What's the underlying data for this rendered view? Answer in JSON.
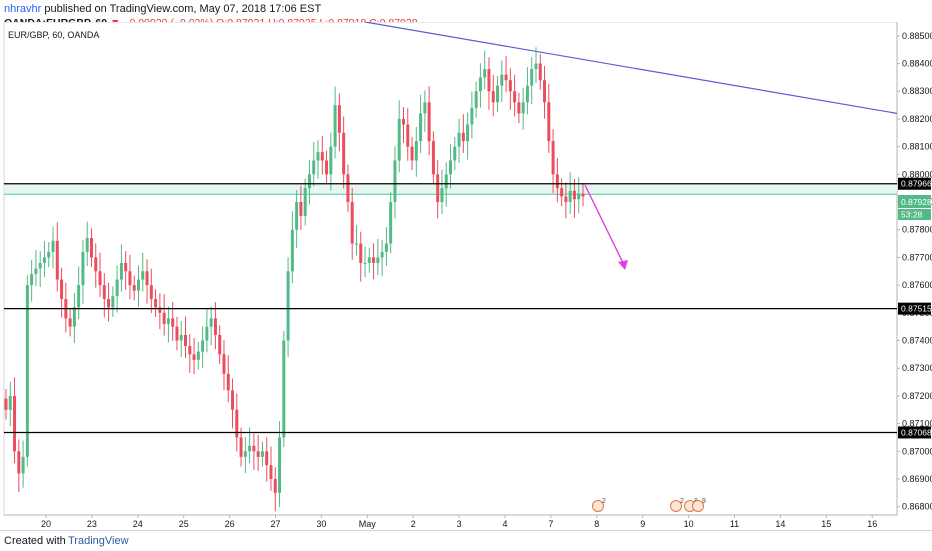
{
  "header": {
    "author": "nhravhr",
    "published": "published on TradingView.com, May 07, 2018 17:06 EST",
    "symbol": "OANDA:EURGBP, 60",
    "change": "▼ −0.00020 (−0.02%)",
    "ohlc": "O:0.87921 H:0.87935 L:0.87918 C:0.87928"
  },
  "chart_data": {
    "type": "candlestick",
    "title": "EUR/GBP, 60, OANDA",
    "y_range": [
      0.8677,
      0.8855
    ],
    "y_ticks": [
      "0.88500",
      "0.88400",
      "0.88300",
      "0.88200",
      "0.88100",
      "0.88000",
      "0.87900",
      "0.87800",
      "0.87700",
      "0.87600",
      "0.87500",
      "0.87400",
      "0.87300",
      "0.87200",
      "0.87100",
      "0.87000",
      "0.86900",
      "0.86800"
    ],
    "x_ticks": [
      "20",
      "23",
      "24",
      "25",
      "26",
      "27",
      "30",
      "May",
      "2",
      "3",
      "4",
      "7",
      "8",
      "9",
      "10",
      "11",
      "14",
      "15",
      "16"
    ],
    "horizontal_levels": [
      {
        "price": 0.87966,
        "label": "0.87966",
        "color": "#000000"
      },
      {
        "price": 0.87515,
        "label": "0.87515",
        "color": "#000000"
      },
      {
        "price": 0.87068,
        "label": "0.87068",
        "color": "#000000"
      }
    ],
    "current_price": {
      "label": "0.87928",
      "countdown": "53:28",
      "color": "#53b987"
    },
    "trendline": {
      "from": [
        0,
        0.8855
      ],
      "to": [
        1,
        0.8822
      ],
      "color": "#5b5bd6"
    },
    "projection_arrow": {
      "color": "#e040e0"
    },
    "candle_colors": {
      "up": "#53b987",
      "down": "#eb4d5c"
    },
    "candles_close_path": [
      0.8715,
      0.872,
      0.87,
      0.8692,
      0.8698,
      0.876,
      0.8764,
      0.8766,
      0.8768,
      0.877,
      0.8772,
      0.8776,
      0.8762,
      0.8755,
      0.8748,
      0.8745,
      0.8752,
      0.876,
      0.8772,
      0.8777,
      0.877,
      0.8765,
      0.876,
      0.8755,
      0.8752,
      0.8756,
      0.8762,
      0.8768,
      0.8765,
      0.876,
      0.8758,
      0.8762,
      0.8765,
      0.876,
      0.8755,
      0.8752,
      0.875,
      0.8746,
      0.8748,
      0.8745,
      0.874,
      0.8742,
      0.8738,
      0.8735,
      0.8733,
      0.8736,
      0.874,
      0.8745,
      0.8748,
      0.8742,
      0.8735,
      0.8728,
      0.8722,
      0.8715,
      0.8705,
      0.8698,
      0.87,
      0.8702,
      0.87,
      0.8698,
      0.87,
      0.8695,
      0.869,
      0.8685,
      0.8705,
      0.874,
      0.8765,
      0.878,
      0.879,
      0.8785,
      0.8795,
      0.88,
      0.8805,
      0.8808,
      0.8805,
      0.88,
      0.881,
      0.8825,
      0.8815,
      0.88,
      0.879,
      0.8775,
      0.8775,
      0.8768,
      0.8768,
      0.877,
      0.8768,
      0.877,
      0.8772,
      0.8775,
      0.879,
      0.8805,
      0.882,
      0.8818,
      0.881,
      0.8805,
      0.8812,
      0.8822,
      0.8826,
      0.8812,
      0.88,
      0.879,
      0.8795,
      0.88,
      0.8805,
      0.881,
      0.8815,
      0.8812,
      0.8818,
      0.8824,
      0.883,
      0.8835,
      0.8838,
      0.883,
      0.8826,
      0.8832,
      0.8836,
      0.8834,
      0.883,
      0.8826,
      0.8822,
      0.8826,
      0.8832,
      0.8838,
      0.884,
      0.8834,
      0.8826,
      0.8812,
      0.88,
      0.8795,
      0.8792,
      0.879,
      0.8794,
      0.8791,
      0.8793,
      0.8792
    ]
  },
  "events": [
    {
      "label": "2"
    },
    {
      "label": "2"
    },
    {
      "label": "8"
    },
    {
      "label": "9"
    }
  ],
  "footer": {
    "created_with": "Created with",
    "brand": "TradingView"
  }
}
